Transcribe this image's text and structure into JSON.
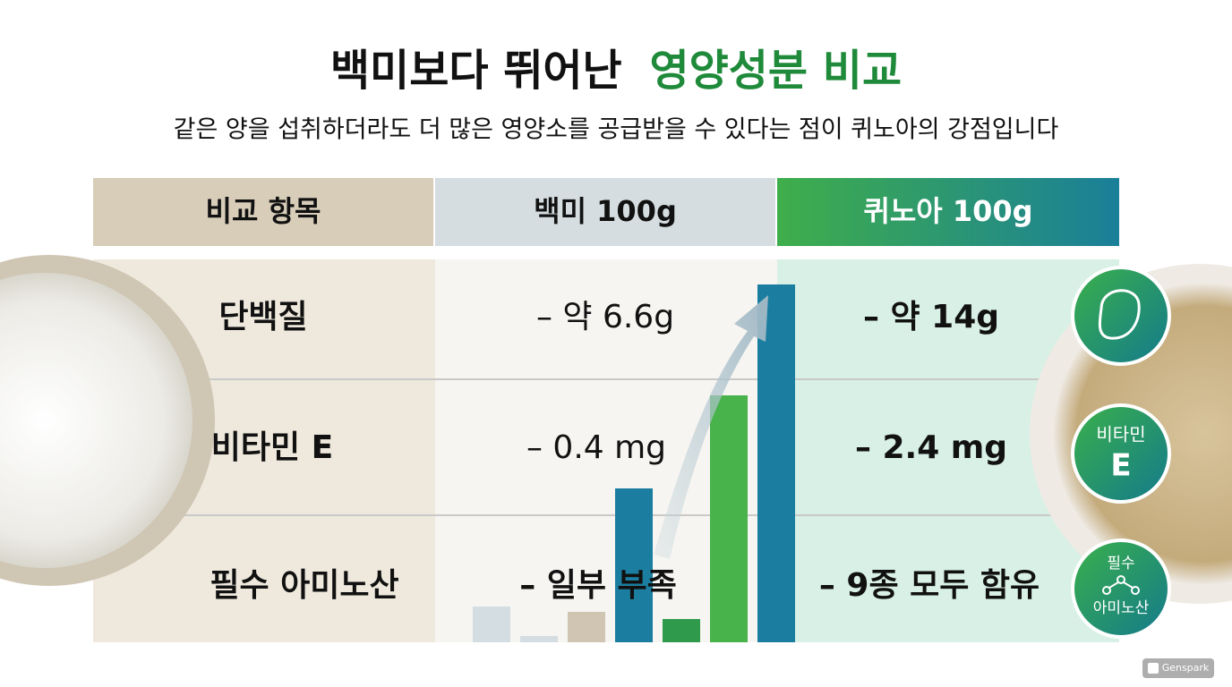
{
  "header": {
    "title_plain": "백미보다 뛰어난",
    "title_accent": "영양성분 비교",
    "subtitle": "같은 양을 섭취하더라도 더 많은 영양소를 공급받을 수 있다는 점이 퀴노아의 강점입니다"
  },
  "table": {
    "columns": [
      "비교 항목",
      "백미 100g",
      "퀴노아 100g"
    ],
    "rows": [
      [
        "단백질",
        "– 약 6.6g",
        "– 약 14g"
      ],
      [
        "비타민 E",
        "– 0.4 mg",
        "– 2.4 mg"
      ],
      [
        "필수 아미노산",
        "– 일부 부족",
        "– 9종 모두 함유"
      ]
    ]
  },
  "badges": [
    [
      "비타민",
      "E"
    ],
    [
      "필수",
      "아미노산"
    ]
  ],
  "watermark": "Genspark"
}
